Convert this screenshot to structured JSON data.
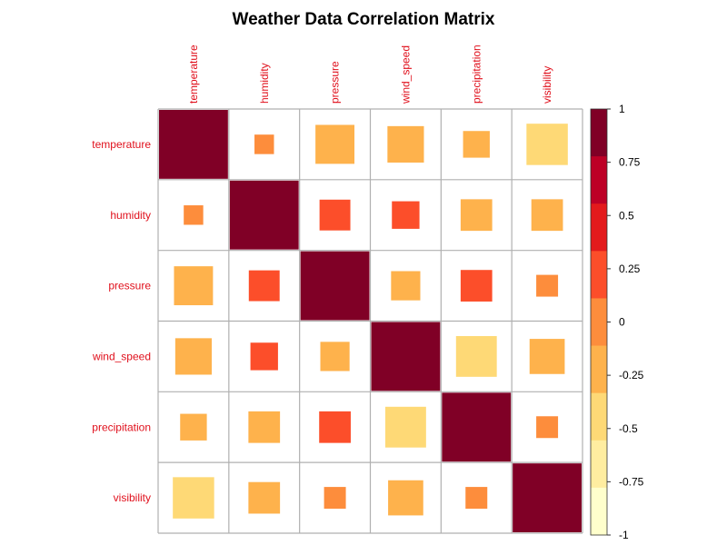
{
  "chart_data": {
    "type": "heatmap",
    "title": "Weather Data Correlation Matrix",
    "variables": [
      "temperature",
      "humidity",
      "pressure",
      "wind_speed",
      "precipitation",
      "visibility"
    ],
    "matrix": [
      [
        1.0,
        -0.08,
        -0.32,
        -0.28,
        -0.15,
        -0.36
      ],
      [
        -0.08,
        1.0,
        0.2,
        0.16,
        -0.21,
        -0.21
      ],
      [
        -0.32,
        0.2,
        1.0,
        -0.18,
        0.21,
        0.1
      ],
      [
        -0.28,
        0.16,
        -0.18,
        1.0,
        -0.35,
        -0.26
      ],
      [
        -0.15,
        -0.21,
        0.21,
        -0.35,
        1.0,
        -0.1
      ],
      [
        -0.36,
        -0.21,
        0.1,
        -0.26,
        -0.1,
        1.0
      ]
    ],
    "method": "square",
    "colorbar": {
      "min": -1,
      "max": 1,
      "ticks": [
        "1",
        "0.75",
        "0.5",
        "0.25",
        "0",
        "-0.25",
        "-0.5",
        "-0.75",
        "-1"
      ],
      "colors": [
        "#FFFFCC",
        "#FFEDA0",
        "#FED976",
        "#FEB24C",
        "#FD8D3C",
        "#FC4E2A",
        "#E31A1C",
        "#BD0026",
        "#800026"
      ]
    },
    "label_color": "#E0101C",
    "grid_color": "#B0B0B0"
  }
}
